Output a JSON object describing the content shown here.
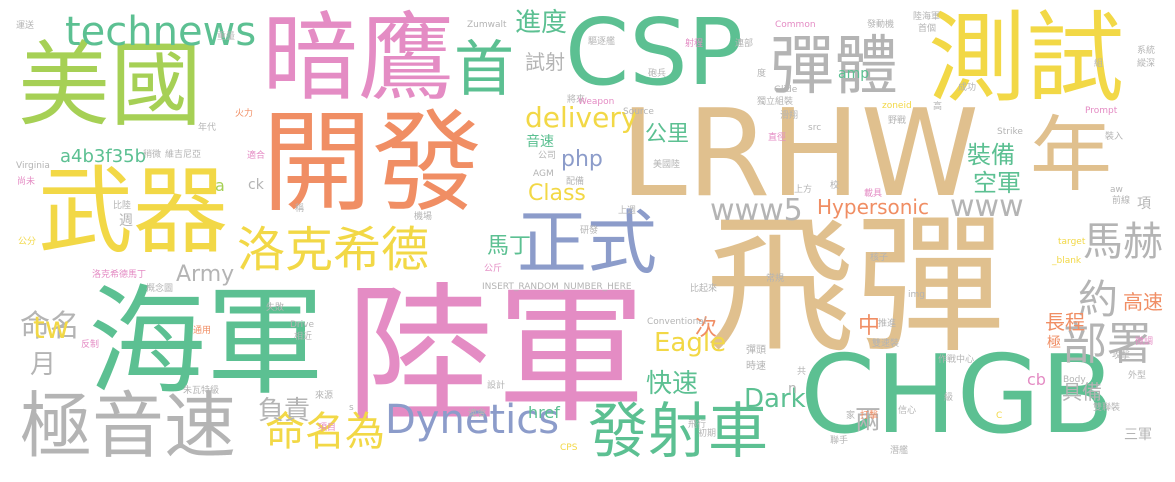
{
  "colors": {
    "green": "#5cc092",
    "pink": "#e48cc4",
    "orange": "#f08e64",
    "tan": "#e0c08e",
    "yellow": "#f2d846",
    "lime": "#a6d055",
    "blue": "#8c9cca",
    "gray": "#b4b4b4"
  },
  "words": [
    {
      "text": "飛彈",
      "color": "tan"
    },
    {
      "text": "陸軍",
      "color": "pink"
    },
    {
      "text": "開發",
      "color": "orange"
    },
    {
      "text": "LRHW",
      "color": "tan"
    },
    {
      "text": "海軍",
      "color": "green"
    },
    {
      "text": "暗鷹",
      "color": "pink"
    },
    {
      "text": "CHGB",
      "color": "green"
    },
    {
      "text": "CSP",
      "color": "green"
    },
    {
      "text": "美國",
      "color": "lime"
    },
    {
      "text": "武器",
      "color": "yellow"
    },
    {
      "text": "測試",
      "color": "yellow"
    },
    {
      "text": "極音速",
      "color": "gray"
    },
    {
      "text": "彈體",
      "color": "gray"
    },
    {
      "text": "正式",
      "color": "blue"
    },
    {
      "text": "年",
      "color": "tan"
    },
    {
      "text": "首",
      "color": "green"
    },
    {
      "text": "發射車",
      "color": "green"
    },
    {
      "text": "洛克希德",
      "color": "yellow"
    },
    {
      "text": "Dynetics",
      "color": "blue"
    },
    {
      "text": "technews",
      "color": "green"
    },
    {
      "text": "部署",
      "color": "gray"
    },
    {
      "text": "馬赫",
      "color": "gray"
    },
    {
      "text": "命名為",
      "color": "yellow"
    },
    {
      "text": "www5",
      "color": "gray"
    },
    {
      "text": "www",
      "color": "gray"
    },
    {
      "text": "約",
      "color": "gray"
    },
    {
      "text": "命名",
      "color": "gray"
    },
    {
      "text": "Hypersonic",
      "color": "orange"
    },
    {
      "text": "delivery",
      "color": "yellow"
    },
    {
      "text": "Eagle",
      "color": "yellow"
    },
    {
      "text": "快速",
      "color": "green"
    },
    {
      "text": "Dark",
      "color": "green"
    },
    {
      "text": "進度",
      "color": "green"
    },
    {
      "text": "負責",
      "color": "gray"
    },
    {
      "text": "月",
      "color": "gray"
    },
    {
      "text": "tw",
      "color": "yellow"
    },
    {
      "text": "Army",
      "color": "gray"
    },
    {
      "text": "a4b3f35b",
      "color": "green"
    },
    {
      "text": "裝備",
      "color": "green"
    },
    {
      "text": "空軍",
      "color": "green"
    },
    {
      "text": "Class",
      "color": "yellow"
    },
    {
      "text": "php",
      "color": "blue"
    },
    {
      "text": "公里",
      "color": "green"
    },
    {
      "text": "試射",
      "color": "gray"
    },
    {
      "text": "馬丁",
      "color": "green"
    },
    {
      "text": "兩",
      "color": "gray"
    },
    {
      "text": "長程",
      "color": "orange"
    },
    {
      "text": "具備",
      "color": "gray"
    },
    {
      "text": "高速",
      "color": "orange"
    },
    {
      "text": "中",
      "color": "orange"
    },
    {
      "text": "次",
      "color": "orange"
    },
    {
      "text": "音速",
      "color": "green"
    },
    {
      "text": "href",
      "color": "green"
    },
    {
      "text": "amp",
      "color": "green"
    },
    {
      "text": "ck",
      "color": "gray"
    },
    {
      "text": "a",
      "color": "lime"
    },
    {
      "text": "n",
      "color": "gray"
    },
    {
      "text": "cb",
      "color": "pink"
    },
    {
      "text": "項",
      "color": "gray"
    },
    {
      "text": "極",
      "color": "orange"
    },
    {
      "text": "週",
      "color": "gray"
    },
    {
      "text": "三軍",
      "color": "gray"
    },
    {
      "text": "彈頭",
      "color": "gray"
    },
    {
      "text": "時速",
      "color": "gray"
    },
    {
      "text": "驅逐艦",
      "color": "gray"
    },
    {
      "text": "Zumwalt",
      "color": "gray"
    },
    {
      "text": "Common",
      "color": "pink"
    },
    {
      "text": "發動機",
      "color": "gray"
    },
    {
      "text": "陸海軍",
      "color": "gray"
    },
    {
      "text": "首個",
      "color": "gray"
    },
    {
      "text": "射程",
      "color": "pink"
    },
    {
      "text": "連部",
      "color": "gray"
    },
    {
      "text": "砲兵",
      "color": "gray"
    },
    {
      "text": "Glide",
      "color": "gray"
    },
    {
      "text": "獨立組裝",
      "color": "gray"
    },
    {
      "text": "將來",
      "color": "gray"
    },
    {
      "text": "Weapon",
      "color": "pink"
    },
    {
      "text": "Source",
      "color": "gray"
    },
    {
      "text": "zoneid",
      "color": "yellow"
    },
    {
      "text": "野戰",
      "color": "gray"
    },
    {
      "text": "Prompt",
      "color": "pink"
    },
    {
      "text": "裝入",
      "color": "gray"
    },
    {
      "text": "成功",
      "color": "gray"
    },
    {
      "text": "高",
      "color": "gray"
    },
    {
      "text": "系統",
      "color": "gray"
    },
    {
      "text": "縱深",
      "color": "gray"
    },
    {
      "text": "火力",
      "color": "orange"
    },
    {
      "text": "年代",
      "color": "gray"
    },
    {
      "text": "維吉尼亞",
      "color": "gray"
    },
    {
      "text": "適合",
      "color": "pink"
    },
    {
      "text": "稍微",
      "color": "gray"
    },
    {
      "text": "Virginia",
      "color": "gray"
    },
    {
      "text": "尚未",
      "color": "pink"
    },
    {
      "text": "公司",
      "color": "gray"
    },
    {
      "text": "AGM",
      "color": "gray"
    },
    {
      "text": "配備",
      "color": "gray"
    },
    {
      "text": "美國陸",
      "color": "gray"
    },
    {
      "text": "滑翔",
      "color": "gray"
    },
    {
      "text": "src",
      "color": "gray"
    },
    {
      "text": "直徑",
      "color": "pink"
    },
    {
      "text": "Strike",
      "color": "gray"
    },
    {
      "text": "aw",
      "color": "gray"
    },
    {
      "text": "前線",
      "color": "gray"
    },
    {
      "text": "上方",
      "color": "gray"
    },
    {
      "text": "校",
      "color": "gray"
    },
    {
      "text": "載具",
      "color": "pink"
    },
    {
      "text": "比陸",
      "color": "gray"
    },
    {
      "text": "稱",
      "color": "gray"
    },
    {
      "text": "機場",
      "color": "gray"
    },
    {
      "text": "上週",
      "color": "gray"
    },
    {
      "text": "研發",
      "color": "gray"
    },
    {
      "text": "target",
      "color": "yellow"
    },
    {
      "text": "_blank",
      "color": "yellow"
    },
    {
      "text": "公分",
      "color": "yellow"
    },
    {
      "text": "洛克希德馬丁",
      "color": "pink"
    },
    {
      "text": "概念圖",
      "color": "gray"
    },
    {
      "text": "INSERT_RANDOM_NUMBER_HERE",
      "color": "gray"
    },
    {
      "text": "核子",
      "color": "gray"
    },
    {
      "text": "常規",
      "color": "gray"
    },
    {
      "text": "比起來",
      "color": "gray"
    },
    {
      "text": "img",
      "color": "gray"
    },
    {
      "text": "公斤",
      "color": "pink"
    },
    {
      "text": "失敗",
      "color": "gray"
    },
    {
      "text": "Conventional",
      "color": "gray"
    },
    {
      "text": "推進",
      "color": "gray"
    },
    {
      "text": "微調",
      "color": "pink"
    },
    {
      "text": "作戰中心",
      "color": "gray"
    },
    {
      "text": "攻擊",
      "color": "gray"
    },
    {
      "text": "雙速裝",
      "color": "gray"
    },
    {
      "text": "外型",
      "color": "gray"
    },
    {
      "text": "通用",
      "color": "orange"
    },
    {
      "text": "Drive",
      "color": "gray"
    },
    {
      "text": "反制",
      "color": "pink"
    },
    {
      "text": "相近",
      "color": "gray"
    },
    {
      "text": "朱瓦特級",
      "color": "gray"
    },
    {
      "text": "來源",
      "color": "gray"
    },
    {
      "text": "共",
      "color": "gray"
    },
    {
      "text": "設計",
      "color": "gray"
    },
    {
      "text": "飛行",
      "color": "gray"
    },
    {
      "text": "Body",
      "color": "gray"
    },
    {
      "text": "雙聯裝",
      "color": "gray"
    },
    {
      "text": "級",
      "color": "gray"
    },
    {
      "text": "信心",
      "color": "gray"
    },
    {
      "text": "家",
      "color": "gray"
    },
    {
      "text": "打擊",
      "color": "orange"
    },
    {
      "text": "項目",
      "color": "pink"
    },
    {
      "text": "s",
      "color": "gray"
    },
    {
      "text": "連會",
      "color": "gray"
    },
    {
      "text": "CPS",
      "color": "yellow"
    },
    {
      "text": "聯手",
      "color": "gray"
    },
    {
      "text": "潛艦",
      "color": "gray"
    },
    {
      "text": "C",
      "color": "yellow"
    },
    {
      "text": "重量",
      "color": "gray"
    },
    {
      "text": "運送",
      "color": "gray"
    },
    {
      "text": "初期",
      "color": "gray"
    },
    {
      "text": "度",
      "color": "gray"
    },
    {
      "text": "組",
      "color": "gray"
    },
    {
      "text": "飛彈",
      "color": "gray"
    }
  ]
}
